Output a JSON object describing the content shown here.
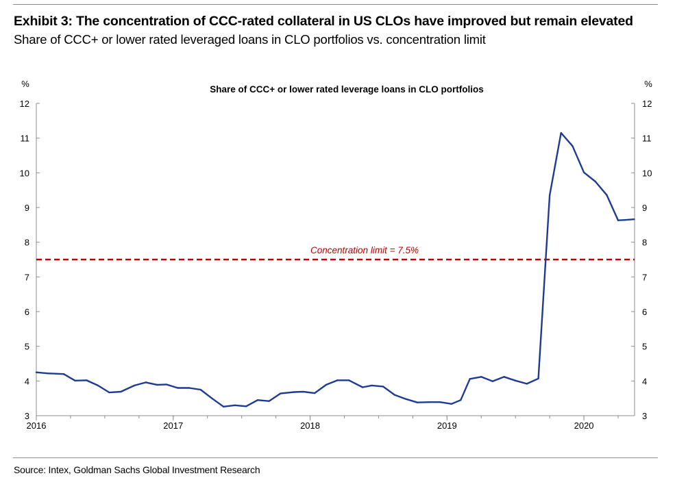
{
  "header": {
    "title": "Exhibit 3: The concentration of CCC-rated collateral in US CLOs have improved but remain elevated",
    "subtitle": "Share of CCC+ or lower rated leveraged loans in CLO portfolios vs. concentration limit"
  },
  "footer": {
    "source": "Source: Intex, Goldman Sachs Global Investment Research"
  },
  "colors": {
    "series": "#1f3a93",
    "limit": "#c00000",
    "axis": "#8c8c8c"
  },
  "chart_data": {
    "type": "line",
    "title": "Share of CCC+ or lower rated leverage loans in CLO portfolios",
    "left_axis_unit": "%",
    "right_axis_unit": "%",
    "ylim": [
      3,
      12
    ],
    "yticks": [
      3,
      4,
      5,
      6,
      7,
      8,
      9,
      10,
      11,
      12
    ],
    "xlim": [
      2016.0,
      2020.37
    ],
    "xticks": [
      {
        "value": 2016,
        "label": "2016"
      },
      {
        "value": 2017,
        "label": "2017"
      },
      {
        "value": 2018,
        "label": "2018"
      },
      {
        "value": 2019,
        "label": "2019"
      },
      {
        "value": 2020,
        "label": "2020"
      }
    ],
    "grid": false,
    "series": [
      {
        "name": "Share of CCC+ or lower rated leverage loans in CLO portfolios",
        "x": [
          2016.0,
          2016.083,
          2016.2,
          2016.283,
          2016.367,
          2016.45,
          2016.533,
          2016.617,
          2016.717,
          2016.8,
          2016.883,
          2016.95,
          2017.033,
          2017.117,
          2017.2,
          2017.283,
          2017.367,
          2017.45,
          2017.533,
          2017.617,
          2017.7,
          2017.783,
          2017.883,
          2017.95,
          2018.033,
          2018.117,
          2018.2,
          2018.283,
          2018.383,
          2018.45,
          2018.533,
          2018.617,
          2018.7,
          2018.783,
          2018.867,
          2018.95,
          2019.033,
          2019.1,
          2019.167,
          2019.25,
          2019.333,
          2019.417,
          2019.5,
          2019.583,
          2019.667,
          2019.75,
          2019.833,
          2019.917,
          2020.0,
          2020.083,
          2020.167,
          2020.25,
          2020.3,
          2020.367
        ],
        "values": [
          4.25,
          4.22,
          4.2,
          4.01,
          4.02,
          3.87,
          3.67,
          3.69,
          3.87,
          3.96,
          3.89,
          3.9,
          3.8,
          3.8,
          3.75,
          3.5,
          3.26,
          3.3,
          3.27,
          3.45,
          3.42,
          3.64,
          3.68,
          3.69,
          3.65,
          3.89,
          4.02,
          4.02,
          3.82,
          3.87,
          3.84,
          3.6,
          3.48,
          3.38,
          3.39,
          3.39,
          3.34,
          3.45,
          4.06,
          4.12,
          3.99,
          4.12,
          4.01,
          3.92,
          4.07,
          9.35,
          11.15,
          10.77,
          10.01,
          9.75,
          9.36,
          8.63,
          8.64,
          8.66
        ]
      }
    ],
    "reference_lines": [
      {
        "name": "Concentration limit",
        "value": 7.5,
        "label": "Concentration limit = 7.5%",
        "style": "dashed"
      }
    ]
  }
}
